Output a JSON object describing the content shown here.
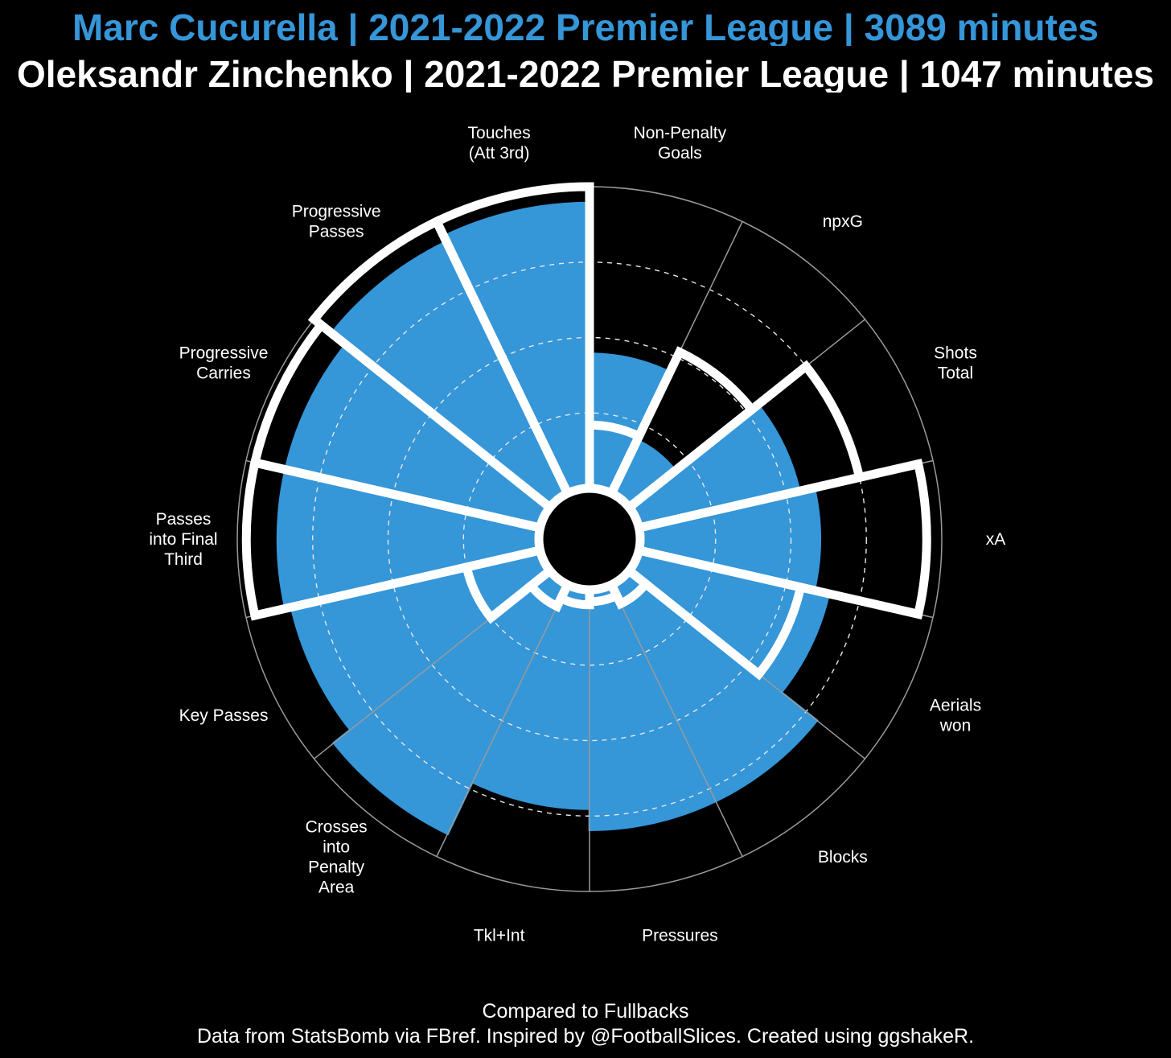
{
  "header": {
    "title_player_1": "Marc Cucurella | 2021-2022 Premier League | 3089 minutes",
    "title_player_2": "Oleksandr Zinchenko | 2021-2022 Premier League | 1047 minutes"
  },
  "footer": {
    "comparison_note": "Compared to Fullbacks",
    "credits": "Data from StatsBomb via FBref. Inspired by @FootballSlices. Created using ggshakeR."
  },
  "colors": {
    "background": "#000000",
    "player_1_fill": "#3596d8",
    "player_2_outline": "#ffffff",
    "grid": "#9a9a9a"
  },
  "chart_data": {
    "type": "radar",
    "scale": "percentile",
    "rlim": [
      0,
      100
    ],
    "grid_rings": [
      25,
      50,
      75
    ],
    "grid_style": "dashed",
    "categories": [
      [
        "Non-Penalty",
        "Goals"
      ],
      [
        "npxG"
      ],
      [
        "Shots",
        "Total"
      ],
      [
        "xA"
      ],
      [
        "Aerials",
        "won"
      ],
      [
        "Blocks"
      ],
      [
        "Pressures"
      ],
      [
        "Tkl+Int"
      ],
      [
        "Crosses",
        "into",
        "Penalty",
        "Area"
      ],
      [
        "Key Passes"
      ],
      [
        "Passes",
        "into Final",
        "Third"
      ],
      [
        "Progressive",
        "Carries"
      ],
      [
        "Progressive",
        "Passes"
      ],
      [
        "Touches",
        "(Att 3rd)"
      ]
    ],
    "series": [
      {
        "name": "Marc Cucurella",
        "style": "filled",
        "values": [
          45,
          20,
          55,
          60,
          65,
          80,
          80,
          73,
          92,
          85,
          87,
          87,
          93,
          95
        ]
      },
      {
        "name": "Oleksandr Zinchenko",
        "style": "outline",
        "values": [
          21,
          52,
          75,
          95,
          55,
          7,
          4,
          5,
          8,
          25,
          97,
          97,
          100,
          100
        ]
      }
    ]
  }
}
